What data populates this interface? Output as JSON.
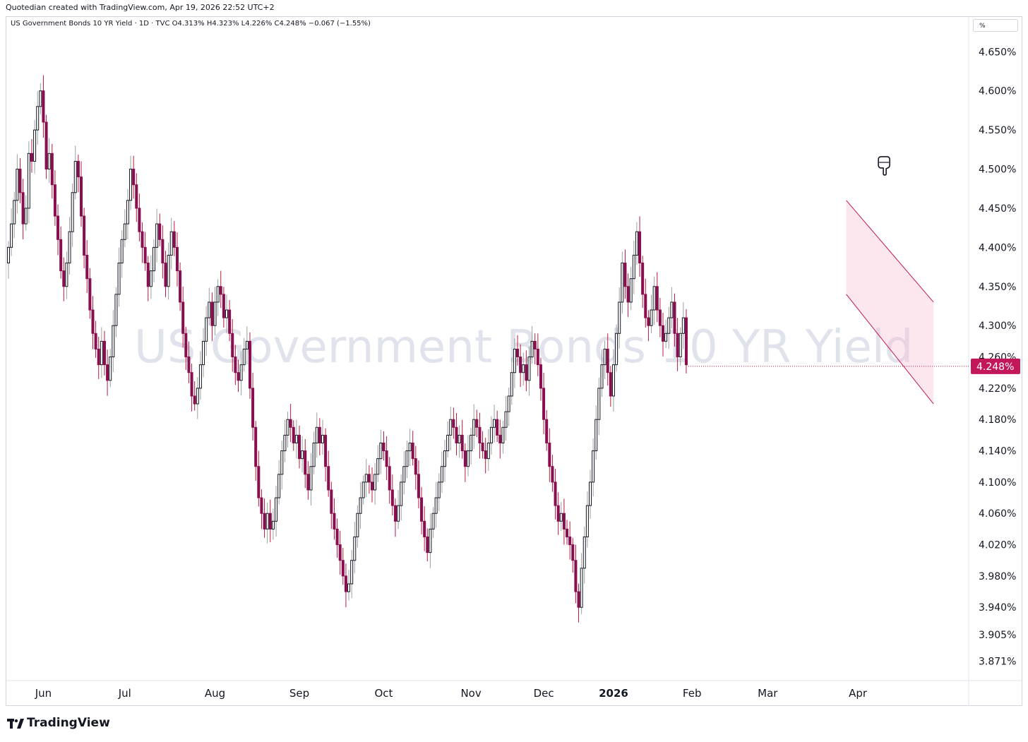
{
  "header": {
    "credit": "Quotedian created with TradingView.com, Apr 19, 2026 22:52 UTC+2",
    "legend": "US Government Bonds 10 YR Yield · 1D · TVC  O4.313%  H4.323%  L4.226%  C4.248%  −0.067 (−1.55%)",
    "unit_label": "%"
  },
  "watermark": "US Government Bonds 10 YR Yield",
  "footer": {
    "brand": "TradingView"
  },
  "colors": {
    "up": "#131722",
    "up_fill": "#ffffff",
    "down": "#880e4f",
    "down_alt": "#b71c3c",
    "channel": "#c2185b",
    "channel_fill": "#f8bbd0",
    "wick_up": "#9e9e9e"
  },
  "chart_data": {
    "type": "candlestick",
    "symbol": "US Government Bonds 10 YR Yield",
    "interval": "1D",
    "source": "TVC",
    "last_price": 4.248,
    "last_price_label": "4.248%",
    "ylim": [
      3.85,
      4.68
    ],
    "y_ticks": [
      4.65,
      4.6,
      4.55,
      4.5,
      4.45,
      4.4,
      4.35,
      4.3,
      4.26,
      4.22,
      4.18,
      4.14,
      4.1,
      4.06,
      4.02,
      3.98,
      3.94,
      3.905,
      3.871
    ],
    "y_tick_labels": [
      "4.650%",
      "4.600%",
      "4.550%",
      "4.500%",
      "4.450%",
      "4.400%",
      "4.350%",
      "4.300%",
      "4.260%",
      "4.220%",
      "4.180%",
      "4.140%",
      "4.100%",
      "4.060%",
      "4.020%",
      "3.980%",
      "3.940%",
      "3.905%",
      "3.871%"
    ],
    "x_tick_labels": [
      "Jun",
      "Jul",
      "Aug",
      "Sep",
      "Oct",
      "Nov",
      "Dec",
      "2026",
      "Feb",
      "Mar",
      "Apr"
    ],
    "x_tick_bar_index": [
      12,
      40,
      71,
      100,
      129,
      159,
      184,
      208,
      235,
      261,
      292
    ],
    "closes": [
      4.4,
      4.43,
      4.46,
      4.5,
      4.47,
      4.43,
      4.45,
      4.52,
      4.51,
      4.55,
      4.58,
      4.6,
      4.56,
      4.5,
      4.52,
      4.48,
      4.44,
      4.41,
      4.37,
      4.35,
      4.38,
      4.42,
      4.47,
      4.51,
      4.49,
      4.44,
      4.39,
      4.36,
      4.32,
      4.29,
      4.27,
      4.25,
      4.28,
      4.25,
      4.23,
      4.26,
      4.3,
      4.34,
      4.38,
      4.41,
      4.43,
      4.46,
      4.5,
      4.48,
      4.45,
      4.42,
      4.4,
      4.38,
      4.35,
      4.37,
      4.4,
      4.43,
      4.41,
      4.38,
      4.35,
      4.39,
      4.42,
      4.4,
      4.37,
      4.33,
      4.29,
      4.26,
      4.24,
      4.21,
      4.2,
      4.22,
      4.25,
      4.28,
      4.31,
      4.33,
      4.3,
      4.33,
      4.35,
      4.34,
      4.31,
      4.32,
      4.29,
      4.26,
      4.24,
      4.23,
      4.25,
      4.27,
      4.28,
      4.22,
      4.17,
      4.12,
      4.08,
      4.06,
      4.04,
      4.06,
      4.04,
      4.05,
      4.08,
      4.11,
      4.14,
      4.16,
      4.18,
      4.17,
      4.15,
      4.16,
      4.13,
      4.14,
      4.11,
      4.09,
      4.12,
      4.15,
      4.17,
      4.15,
      4.16,
      4.12,
      4.09,
      4.06,
      4.04,
      4.02,
      4.0,
      3.98,
      3.96,
      3.97,
      4.0,
      4.03,
      4.06,
      4.08,
      4.1,
      4.11,
      4.1,
      4.09,
      4.11,
      4.13,
      4.15,
      4.14,
      4.12,
      4.09,
      4.07,
      4.05,
      4.07,
      4.1,
      4.12,
      4.14,
      4.15,
      4.13,
      4.11,
      4.08,
      4.05,
      4.03,
      4.01,
      4.04,
      4.06,
      4.08,
      4.1,
      4.12,
      4.14,
      4.16,
      4.18,
      4.17,
      4.15,
      4.16,
      4.14,
      4.12,
      4.14,
      4.16,
      4.18,
      4.17,
      4.15,
      4.14,
      4.13,
      4.15,
      4.17,
      4.18,
      4.16,
      4.15,
      4.17,
      4.19,
      4.21,
      4.24,
      4.27,
      4.26,
      4.24,
      4.25,
      4.23,
      4.26,
      4.28,
      4.27,
      4.25,
      4.22,
      4.18,
      4.15,
      4.12,
      4.1,
      4.07,
      4.05,
      4.06,
      4.04,
      4.03,
      4.02,
      4.0,
      3.96,
      3.94,
      3.99,
      4.03,
      4.07,
      4.1,
      4.14,
      4.18,
      4.22,
      4.25,
      4.27,
      4.24,
      4.21,
      4.25,
      4.29,
      4.33,
      4.38,
      4.35,
      4.33,
      4.36,
      4.39,
      4.42,
      4.38,
      4.34,
      4.31,
      4.3,
      4.32,
      4.35,
      4.32,
      4.3,
      4.28,
      4.29,
      4.31,
      4.33,
      4.29,
      4.26,
      4.29,
      4.31,
      4.25
    ],
    "channel": {
      "type": "parallel_channel",
      "upper": {
        "start": {
          "bar": 288,
          "value": 4.46
        },
        "end": {
          "bar": 318,
          "value": 4.33
        }
      },
      "lower": {
        "start": {
          "bar": 288,
          "value": 4.34
        },
        "end": {
          "bar": 318,
          "value": 4.2
        }
      }
    },
    "annotation": {
      "type": "pointer-icon",
      "bar": 301,
      "value": 4.505
    }
  }
}
